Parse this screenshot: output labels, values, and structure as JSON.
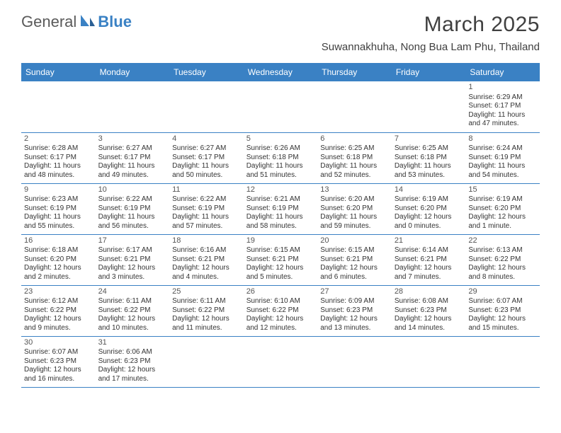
{
  "logo": {
    "text1": "General",
    "text2": "Blue"
  },
  "title": "March 2025",
  "location": "Suwannakhuha, Nong Bua Lam Phu, Thailand",
  "colors": {
    "header_bg": "#3a81c4",
    "header_text": "#ffffff",
    "border": "#3a81c4",
    "logo_gray": "#5a5a5a",
    "logo_blue": "#3a81c4"
  },
  "day_names": [
    "Sunday",
    "Monday",
    "Tuesday",
    "Wednesday",
    "Thursday",
    "Friday",
    "Saturday"
  ],
  "weeks": [
    [
      null,
      null,
      null,
      null,
      null,
      null,
      {
        "n": "1",
        "sr": "Sunrise: 6:29 AM",
        "ss": "Sunset: 6:17 PM",
        "dl": "Daylight: 11 hours and 47 minutes."
      }
    ],
    [
      {
        "n": "2",
        "sr": "Sunrise: 6:28 AM",
        "ss": "Sunset: 6:17 PM",
        "dl": "Daylight: 11 hours and 48 minutes."
      },
      {
        "n": "3",
        "sr": "Sunrise: 6:27 AM",
        "ss": "Sunset: 6:17 PM",
        "dl": "Daylight: 11 hours and 49 minutes."
      },
      {
        "n": "4",
        "sr": "Sunrise: 6:27 AM",
        "ss": "Sunset: 6:17 PM",
        "dl": "Daylight: 11 hours and 50 minutes."
      },
      {
        "n": "5",
        "sr": "Sunrise: 6:26 AM",
        "ss": "Sunset: 6:18 PM",
        "dl": "Daylight: 11 hours and 51 minutes."
      },
      {
        "n": "6",
        "sr": "Sunrise: 6:25 AM",
        "ss": "Sunset: 6:18 PM",
        "dl": "Daylight: 11 hours and 52 minutes."
      },
      {
        "n": "7",
        "sr": "Sunrise: 6:25 AM",
        "ss": "Sunset: 6:18 PM",
        "dl": "Daylight: 11 hours and 53 minutes."
      },
      {
        "n": "8",
        "sr": "Sunrise: 6:24 AM",
        "ss": "Sunset: 6:19 PM",
        "dl": "Daylight: 11 hours and 54 minutes."
      }
    ],
    [
      {
        "n": "9",
        "sr": "Sunrise: 6:23 AM",
        "ss": "Sunset: 6:19 PM",
        "dl": "Daylight: 11 hours and 55 minutes."
      },
      {
        "n": "10",
        "sr": "Sunrise: 6:22 AM",
        "ss": "Sunset: 6:19 PM",
        "dl": "Daylight: 11 hours and 56 minutes."
      },
      {
        "n": "11",
        "sr": "Sunrise: 6:22 AM",
        "ss": "Sunset: 6:19 PM",
        "dl": "Daylight: 11 hours and 57 minutes."
      },
      {
        "n": "12",
        "sr": "Sunrise: 6:21 AM",
        "ss": "Sunset: 6:19 PM",
        "dl": "Daylight: 11 hours and 58 minutes."
      },
      {
        "n": "13",
        "sr": "Sunrise: 6:20 AM",
        "ss": "Sunset: 6:20 PM",
        "dl": "Daylight: 11 hours and 59 minutes."
      },
      {
        "n": "14",
        "sr": "Sunrise: 6:19 AM",
        "ss": "Sunset: 6:20 PM",
        "dl": "Daylight: 12 hours and 0 minutes."
      },
      {
        "n": "15",
        "sr": "Sunrise: 6:19 AM",
        "ss": "Sunset: 6:20 PM",
        "dl": "Daylight: 12 hours and 1 minute."
      }
    ],
    [
      {
        "n": "16",
        "sr": "Sunrise: 6:18 AM",
        "ss": "Sunset: 6:20 PM",
        "dl": "Daylight: 12 hours and 2 minutes."
      },
      {
        "n": "17",
        "sr": "Sunrise: 6:17 AM",
        "ss": "Sunset: 6:21 PM",
        "dl": "Daylight: 12 hours and 3 minutes."
      },
      {
        "n": "18",
        "sr": "Sunrise: 6:16 AM",
        "ss": "Sunset: 6:21 PM",
        "dl": "Daylight: 12 hours and 4 minutes."
      },
      {
        "n": "19",
        "sr": "Sunrise: 6:15 AM",
        "ss": "Sunset: 6:21 PM",
        "dl": "Daylight: 12 hours and 5 minutes."
      },
      {
        "n": "20",
        "sr": "Sunrise: 6:15 AM",
        "ss": "Sunset: 6:21 PM",
        "dl": "Daylight: 12 hours and 6 minutes."
      },
      {
        "n": "21",
        "sr": "Sunrise: 6:14 AM",
        "ss": "Sunset: 6:21 PM",
        "dl": "Daylight: 12 hours and 7 minutes."
      },
      {
        "n": "22",
        "sr": "Sunrise: 6:13 AM",
        "ss": "Sunset: 6:22 PM",
        "dl": "Daylight: 12 hours and 8 minutes."
      }
    ],
    [
      {
        "n": "23",
        "sr": "Sunrise: 6:12 AM",
        "ss": "Sunset: 6:22 PM",
        "dl": "Daylight: 12 hours and 9 minutes."
      },
      {
        "n": "24",
        "sr": "Sunrise: 6:11 AM",
        "ss": "Sunset: 6:22 PM",
        "dl": "Daylight: 12 hours and 10 minutes."
      },
      {
        "n": "25",
        "sr": "Sunrise: 6:11 AM",
        "ss": "Sunset: 6:22 PM",
        "dl": "Daylight: 12 hours and 11 minutes."
      },
      {
        "n": "26",
        "sr": "Sunrise: 6:10 AM",
        "ss": "Sunset: 6:22 PM",
        "dl": "Daylight: 12 hours and 12 minutes."
      },
      {
        "n": "27",
        "sr": "Sunrise: 6:09 AM",
        "ss": "Sunset: 6:23 PM",
        "dl": "Daylight: 12 hours and 13 minutes."
      },
      {
        "n": "28",
        "sr": "Sunrise: 6:08 AM",
        "ss": "Sunset: 6:23 PM",
        "dl": "Daylight: 12 hours and 14 minutes."
      },
      {
        "n": "29",
        "sr": "Sunrise: 6:07 AM",
        "ss": "Sunset: 6:23 PM",
        "dl": "Daylight: 12 hours and 15 minutes."
      }
    ],
    [
      {
        "n": "30",
        "sr": "Sunrise: 6:07 AM",
        "ss": "Sunset: 6:23 PM",
        "dl": "Daylight: 12 hours and 16 minutes."
      },
      {
        "n": "31",
        "sr": "Sunrise: 6:06 AM",
        "ss": "Sunset: 6:23 PM",
        "dl": "Daylight: 12 hours and 17 minutes."
      },
      null,
      null,
      null,
      null,
      null
    ]
  ]
}
